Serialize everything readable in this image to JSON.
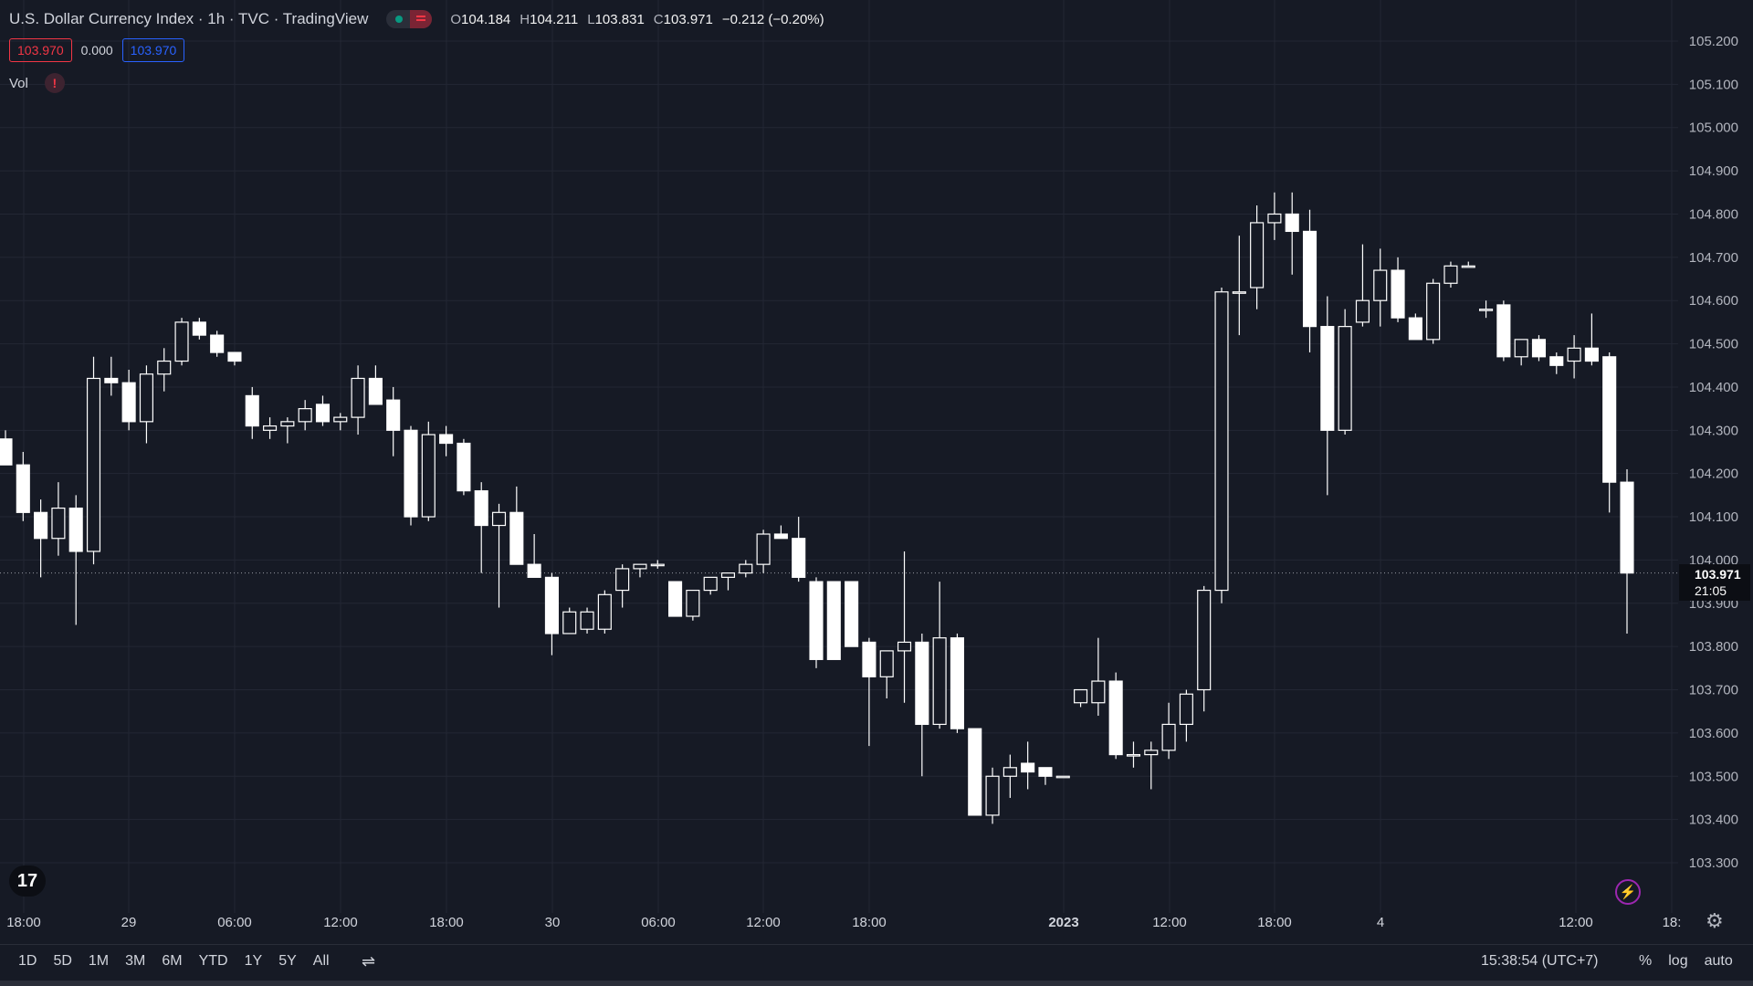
{
  "header": {
    "title": "U.S. Dollar Currency Index · 1h · TVC · TradingView",
    "ohlc": [
      {
        "k": "O",
        "v": "104.184"
      },
      {
        "k": "H",
        "v": "104.211"
      },
      {
        "k": "L",
        "v": "103.831"
      },
      {
        "k": "C",
        "v": "103.971"
      }
    ],
    "change": "−0.212 (−0.20%)"
  },
  "quote": {
    "bid": "103.970",
    "spread": "0.000",
    "ask": "103.970"
  },
  "volume": {
    "label": "Vol",
    "warning_icon": "exclamation-icon"
  },
  "price_badge": {
    "price": "103.971",
    "countdown": "21:05"
  },
  "bottom_bar": {
    "ranges": [
      "1D",
      "5D",
      "1M",
      "3M",
      "6M",
      "YTD",
      "1Y",
      "5Y",
      "All"
    ],
    "clock": "15:38:54 (UTC+7)",
    "scale_options": [
      "%",
      "log",
      "auto"
    ]
  },
  "icons": {
    "logo": "tradingview-logo-icon",
    "bolt": "lightning-icon",
    "settings": "gear-icon",
    "compare": "compare-icon"
  },
  "colors": {
    "background": "#161a25",
    "grid": "#232734",
    "candle_up": "#161a25",
    "candle_down": "#ffffff",
    "wick": "#ffffff",
    "bid": "#f23645",
    "ask": "#2962ff"
  },
  "chart_data": {
    "type": "candlestick",
    "title": "U.S. Dollar Currency Index",
    "interval": "1h",
    "ylim": [
      103.25,
      105.25
    ],
    "y_ticks": [
      "103.300",
      "103.400",
      "103.500",
      "103.600",
      "103.700",
      "103.800",
      "103.900",
      "104.000",
      "104.100",
      "104.200",
      "104.300",
      "104.400",
      "104.500",
      "104.600",
      "104.700",
      "104.800",
      "104.900",
      "105.000",
      "105.100",
      "105.200"
    ],
    "x_ticks": [
      "18:00",
      "29",
      "06:00",
      "12:00",
      "18:00",
      "30",
      "06:00",
      "12:00",
      "18:00",
      "2023",
      "12:00",
      "18:00",
      "4",
      "12:00",
      "18:"
    ],
    "grid": true,
    "candles": [
      {
        "o": 104.28,
        "h": 104.3,
        "l": 104.22,
        "c": 104.22
      },
      {
        "o": 104.22,
        "h": 104.25,
        "l": 104.09,
        "c": 104.11
      },
      {
        "o": 104.11,
        "h": 104.14,
        "l": 103.96,
        "c": 104.05
      },
      {
        "o": 104.05,
        "h": 104.18,
        "l": 104.01,
        "c": 104.12
      },
      {
        "o": 104.12,
        "h": 104.15,
        "l": 103.85,
        "c": 104.02
      },
      {
        "o": 104.02,
        "h": 104.47,
        "l": 103.99,
        "c": 104.42
      },
      {
        "o": 104.42,
        "h": 104.47,
        "l": 104.38,
        "c": 104.41
      },
      {
        "o": 104.41,
        "h": 104.44,
        "l": 104.3,
        "c": 104.32
      },
      {
        "o": 104.32,
        "h": 104.45,
        "l": 104.27,
        "c": 104.43
      },
      {
        "o": 104.43,
        "h": 104.49,
        "l": 104.39,
        "c": 104.46
      },
      {
        "o": 104.46,
        "h": 104.56,
        "l": 104.45,
        "c": 104.55
      },
      {
        "o": 104.55,
        "h": 104.56,
        "l": 104.51,
        "c": 104.52
      },
      {
        "o": 104.52,
        "h": 104.53,
        "l": 104.47,
        "c": 104.48
      },
      {
        "o": 104.48,
        "h": 104.48,
        "l": 104.45,
        "c": 104.46
      },
      {
        "o": 104.38,
        "h": 104.4,
        "l": 104.28,
        "c": 104.31
      },
      {
        "o": 104.3,
        "h": 104.33,
        "l": 104.28,
        "c": 104.31
      },
      {
        "o": 104.31,
        "h": 104.33,
        "l": 104.27,
        "c": 104.32
      },
      {
        "o": 104.32,
        "h": 104.37,
        "l": 104.3,
        "c": 104.35
      },
      {
        "o": 104.36,
        "h": 104.38,
        "l": 104.31,
        "c": 104.32
      },
      {
        "o": 104.32,
        "h": 104.34,
        "l": 104.3,
        "c": 104.33
      },
      {
        "o": 104.33,
        "h": 104.45,
        "l": 104.29,
        "c": 104.42
      },
      {
        "o": 104.42,
        "h": 104.45,
        "l": 104.36,
        "c": 104.36
      },
      {
        "o": 104.37,
        "h": 104.4,
        "l": 104.24,
        "c": 104.3
      },
      {
        "o": 104.3,
        "h": 104.31,
        "l": 104.08,
        "c": 104.1
      },
      {
        "o": 104.1,
        "h": 104.32,
        "l": 104.09,
        "c": 104.29
      },
      {
        "o": 104.29,
        "h": 104.31,
        "l": 104.24,
        "c": 104.27
      },
      {
        "o": 104.27,
        "h": 104.28,
        "l": 104.15,
        "c": 104.16
      },
      {
        "o": 104.16,
        "h": 104.18,
        "l": 103.97,
        "c": 104.08
      },
      {
        "o": 104.08,
        "h": 104.13,
        "l": 103.89,
        "c": 104.11
      },
      {
        "o": 104.11,
        "h": 104.17,
        "l": 103.99,
        "c": 103.99
      },
      {
        "o": 103.99,
        "h": 104.06,
        "l": 103.96,
        "c": 103.96
      },
      {
        "o": 103.96,
        "h": 103.97,
        "l": 103.78,
        "c": 103.83
      },
      {
        "o": 103.83,
        "h": 103.89,
        "l": 103.83,
        "c": 103.88
      },
      {
        "o": 103.84,
        "h": 103.89,
        "l": 103.83,
        "c": 103.88
      },
      {
        "o": 103.84,
        "h": 103.93,
        "l": 103.83,
        "c": 103.92
      },
      {
        "o": 103.93,
        "h": 103.99,
        "l": 103.89,
        "c": 103.98
      },
      {
        "o": 103.98,
        "h": 103.99,
        "l": 103.96,
        "c": 103.99
      },
      {
        "o": 103.99,
        "h": 104.0,
        "l": 103.98,
        "c": 103.99
      },
      {
        "o": 103.95,
        "h": 103.95,
        "l": 103.87,
        "c": 103.87
      },
      {
        "o": 103.87,
        "h": 103.93,
        "l": 103.86,
        "c": 103.93
      },
      {
        "o": 103.93,
        "h": 103.96,
        "l": 103.92,
        "c": 103.96
      },
      {
        "o": 103.96,
        "h": 103.97,
        "l": 103.93,
        "c": 103.97
      },
      {
        "o": 103.97,
        "h": 104.0,
        "l": 103.96,
        "c": 103.99
      },
      {
        "o": 103.99,
        "h": 104.07,
        "l": 103.97,
        "c": 104.06
      },
      {
        "o": 104.06,
        "h": 104.08,
        "l": 104.05,
        "c": 104.05
      },
      {
        "o": 104.05,
        "h": 104.1,
        "l": 103.95,
        "c": 103.96
      },
      {
        "o": 103.95,
        "h": 103.96,
        "l": 103.75,
        "c": 103.77
      },
      {
        "o": 103.95,
        "h": 103.95,
        "l": 103.77,
        "c": 103.77
      },
      {
        "o": 103.95,
        "h": 103.95,
        "l": 103.8,
        "c": 103.8
      },
      {
        "o": 103.81,
        "h": 103.82,
        "l": 103.57,
        "c": 103.73
      },
      {
        "o": 103.73,
        "h": 103.79,
        "l": 103.68,
        "c": 103.79
      },
      {
        "o": 103.79,
        "h": 104.02,
        "l": 103.67,
        "c": 103.81
      },
      {
        "o": 103.81,
        "h": 103.83,
        "l": 103.5,
        "c": 103.62
      },
      {
        "o": 103.62,
        "h": 103.95,
        "l": 103.61,
        "c": 103.82
      },
      {
        "o": 103.82,
        "h": 103.83,
        "l": 103.6,
        "c": 103.61
      },
      {
        "o": 103.61,
        "h": 103.61,
        "l": 103.41,
        "c": 103.41
      },
      {
        "o": 103.41,
        "h": 103.52,
        "l": 103.39,
        "c": 103.5
      },
      {
        "o": 103.5,
        "h": 103.55,
        "l": 103.45,
        "c": 103.52
      },
      {
        "o": 103.53,
        "h": 103.58,
        "l": 103.47,
        "c": 103.51
      },
      {
        "o": 103.52,
        "h": 103.52,
        "l": 103.48,
        "c": 103.5
      },
      {
        "o": 103.5,
        "h": 103.5,
        "l": 103.5,
        "c": 103.5
      },
      {
        "o": 103.67,
        "h": 103.7,
        "l": 103.66,
        "c": 103.7
      },
      {
        "o": 103.67,
        "h": 103.82,
        "l": 103.64,
        "c": 103.72
      },
      {
        "o": 103.72,
        "h": 103.74,
        "l": 103.54,
        "c": 103.55
      },
      {
        "o": 103.55,
        "h": 103.58,
        "l": 103.52,
        "c": 103.55
      },
      {
        "o": 103.55,
        "h": 103.58,
        "l": 103.47,
        "c": 103.56
      },
      {
        "o": 103.56,
        "h": 103.67,
        "l": 103.54,
        "c": 103.62
      },
      {
        "o": 103.62,
        "h": 103.7,
        "l": 103.58,
        "c": 103.69
      },
      {
        "o": 103.7,
        "h": 103.94,
        "l": 103.65,
        "c": 103.93
      },
      {
        "o": 103.93,
        "h": 104.63,
        "l": 103.9,
        "c": 104.62
      },
      {
        "o": 104.62,
        "h": 104.75,
        "l": 104.52,
        "c": 104.62
      },
      {
        "o": 104.63,
        "h": 104.82,
        "l": 104.58,
        "c": 104.78
      },
      {
        "o": 104.78,
        "h": 104.85,
        "l": 104.74,
        "c": 104.8
      },
      {
        "o": 104.8,
        "h": 104.85,
        "l": 104.66,
        "c": 104.76
      },
      {
        "o": 104.76,
        "h": 104.81,
        "l": 104.48,
        "c": 104.54
      },
      {
        "o": 104.54,
        "h": 104.61,
        "l": 104.15,
        "c": 104.3
      },
      {
        "o": 104.3,
        "h": 104.58,
        "l": 104.29,
        "c": 104.54
      },
      {
        "o": 104.55,
        "h": 104.73,
        "l": 104.54,
        "c": 104.6
      },
      {
        "o": 104.6,
        "h": 104.72,
        "l": 104.54,
        "c": 104.67
      },
      {
        "o": 104.67,
        "h": 104.7,
        "l": 104.55,
        "c": 104.56
      },
      {
        "o": 104.56,
        "h": 104.57,
        "l": 104.51,
        "c": 104.51
      },
      {
        "o": 104.51,
        "h": 104.65,
        "l": 104.5,
        "c": 104.64
      },
      {
        "o": 104.64,
        "h": 104.69,
        "l": 104.63,
        "c": 104.68
      },
      {
        "o": 104.68,
        "h": 104.69,
        "l": 104.68,
        "c": 104.68
      },
      {
        "o": 104.58,
        "h": 104.6,
        "l": 104.56,
        "c": 104.58
      },
      {
        "o": 104.59,
        "h": 104.6,
        "l": 104.46,
        "c": 104.47
      },
      {
        "o": 104.47,
        "h": 104.51,
        "l": 104.45,
        "c": 104.51
      },
      {
        "o": 104.51,
        "h": 104.52,
        "l": 104.46,
        "c": 104.47
      },
      {
        "o": 104.47,
        "h": 104.48,
        "l": 104.43,
        "c": 104.45
      },
      {
        "o": 104.46,
        "h": 104.52,
        "l": 104.42,
        "c": 104.49
      },
      {
        "o": 104.49,
        "h": 104.57,
        "l": 104.45,
        "c": 104.46
      },
      {
        "o": 104.47,
        "h": 104.48,
        "l": 104.11,
        "c": 104.18
      },
      {
        "o": 104.18,
        "h": 104.21,
        "l": 103.83,
        "c": 103.97
      }
    ]
  }
}
